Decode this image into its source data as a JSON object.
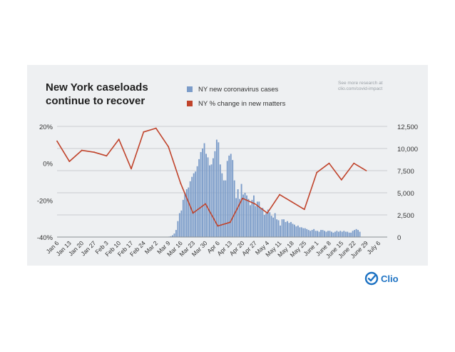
{
  "note": "See more research at clio.com/covid-impact",
  "brand": {
    "name": "Clio",
    "color": "#1d72c3"
  },
  "chart_data": {
    "type": "bar+line",
    "title": "New York caseloads continue to recover",
    "title_lines": [
      "New York caseloads",
      "continue to recover"
    ],
    "left_axis": {
      "label": "NY % change in new matters",
      "range": [
        -40,
        20
      ],
      "ticks": [
        "20%",
        "0%",
        "-20%",
        "-40%"
      ],
      "tick_values": [
        20,
        0,
        -20,
        -40
      ]
    },
    "right_axis": {
      "label": "NY new coronavirus cases",
      "range": [
        0,
        12500
      ],
      "ticks": [
        "12,500",
        "10,000",
        "7,500",
        "5,000",
        "2,500",
        "0"
      ],
      "tick_values": [
        12500,
        10000,
        7500,
        5000,
        2500,
        0
      ]
    },
    "x_tick_labels": [
      "Jan 6",
      "Jan 13",
      "Jan 20",
      "Jan 27",
      "Feb 3",
      "Feb 10",
      "Feb 17",
      "Feb 24",
      "Mar 2",
      "Mar 9",
      "Mar 16",
      "Mar 23",
      "Mar 30",
      "Apr 6",
      "Apr 13",
      "Apr 20",
      "Apr 27",
      "May 4",
      "May 11",
      "May 18",
      "May 25",
      "June 1",
      "June 8",
      "June 15",
      "June 22",
      "June 29",
      "July 6"
    ],
    "series": [
      {
        "name": "NY new coronavirus cases",
        "type": "bar",
        "axis": "right",
        "color": "#7b9cc9",
        "start_label": "Mar 1",
        "values": [
          0,
          0,
          0,
          0,
          0,
          5,
          10,
          20,
          50,
          100,
          200,
          400,
          800,
          1800,
          2700,
          3000,
          4200,
          5000,
          5400,
          5600,
          6300,
          6800,
          7200,
          7400,
          8000,
          8800,
          9600,
          10000,
          10600,
          9400,
          9000,
          8100,
          8200,
          8900,
          9700,
          11000,
          10700,
          8200,
          7200,
          6400,
          6400,
          8600,
          9200,
          9400,
          8700,
          6400,
          4400,
          5400,
          4300,
          6000,
          4800,
          5000,
          4700,
          4300,
          3600,
          4200,
          4700,
          3500,
          4000,
          4000,
          3200,
          3300,
          2500,
          2700,
          3100,
          2800,
          2400,
          2200,
          2700,
          2000,
          1900,
          1300,
          2000,
          2000,
          1700,
          1800,
          1600,
          1700,
          1500,
          1400,
          1200,
          1300,
          1100,
          1100,
          1000,
          1000,
          900,
          800,
          700,
          800,
          900,
          700,
          700,
          600,
          800,
          800,
          700,
          600,
          700,
          700,
          600,
          500,
          600,
          700,
          600,
          700,
          600,
          700,
          600,
          600,
          500,
          500,
          700,
          800,
          900,
          800,
          600
        ]
      },
      {
        "name": "NY % change in new matters",
        "type": "line",
        "axis": "left",
        "color": "#c0432b",
        "x": [
          "Jan 6",
          "Jan 13",
          "Jan 20",
          "Jan 27",
          "Feb 3",
          "Feb 10",
          "Feb 17",
          "Feb 24",
          "Mar 2",
          "Mar 9",
          "Mar 16",
          "Mar 23",
          "Mar 30",
          "Apr 6",
          "Apr 13",
          "Apr 20",
          "Apr 27",
          "May 4",
          "May 11",
          "May 18",
          "May 25",
          "June 1",
          "June 8",
          "June 15",
          "June 22",
          "June 29"
        ],
        "values": [
          12,
          1,
          7,
          6,
          4,
          13,
          -3,
          17,
          19,
          9,
          -11,
          -27,
          -22,
          -34,
          -32,
          -19,
          -22,
          -27,
          -17,
          -21,
          -25,
          -5,
          0,
          -9,
          0,
          -4
        ]
      }
    ],
    "grid": true
  }
}
